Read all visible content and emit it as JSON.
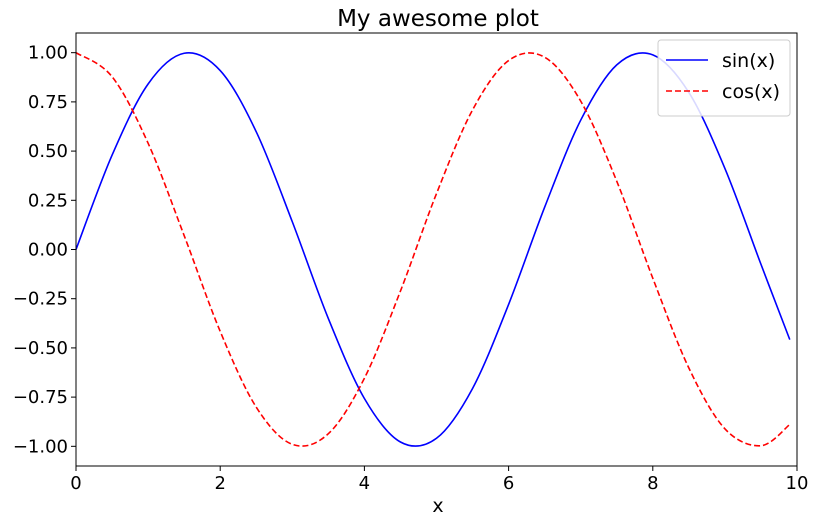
{
  "chart_data": {
    "type": "line",
    "title": "My awesome plot",
    "xlabel": "x",
    "ylabel": "",
    "xlim": [
      0,
      10
    ],
    "ylim": [
      -1.1,
      1.1
    ],
    "xticks": [
      0,
      2,
      4,
      6,
      8,
      10
    ],
    "xtick_labels": [
      "0",
      "2",
      "4",
      "6",
      "8",
      "10"
    ],
    "yticks": [
      1.0,
      0.75,
      0.5,
      0.25,
      0.0,
      -0.25,
      -0.5,
      -0.75,
      -1.0
    ],
    "ytick_labels": [
      "1.00",
      "0.75",
      "0.50",
      "0.25",
      "0.00",
      "−0.25",
      "−0.50",
      "−0.75",
      "−1.00"
    ],
    "grid": false,
    "legend_position": "top-right",
    "x": [
      0.0,
      0.5,
      1.0,
      1.5,
      2.0,
      2.5,
      3.0,
      3.5,
      4.0,
      4.5,
      5.0,
      5.5,
      6.0,
      6.5,
      7.0,
      7.5,
      8.0,
      8.5,
      9.0,
      9.5,
      9.9
    ],
    "series": [
      {
        "name": "sin(x)",
        "color": "#0000ff",
        "style": "solid",
        "values": [
          0.0,
          0.479,
          0.841,
          0.997,
          0.909,
          0.598,
          0.141,
          -0.351,
          -0.757,
          -0.978,
          -0.959,
          -0.706,
          -0.279,
          0.215,
          0.657,
          0.938,
          0.989,
          0.798,
          0.412,
          -0.075,
          -0.458
        ]
      },
      {
        "name": "cos(x)",
        "color": "#ff0000",
        "style": "dashed",
        "values": [
          1.0,
          0.878,
          0.54,
          0.071,
          -0.416,
          -0.801,
          -0.99,
          -0.936,
          -0.654,
          -0.211,
          0.284,
          0.709,
          0.96,
          0.977,
          0.754,
          0.347,
          -0.146,
          -0.602,
          -0.911,
          -0.997,
          -0.889
        ]
      }
    ]
  }
}
